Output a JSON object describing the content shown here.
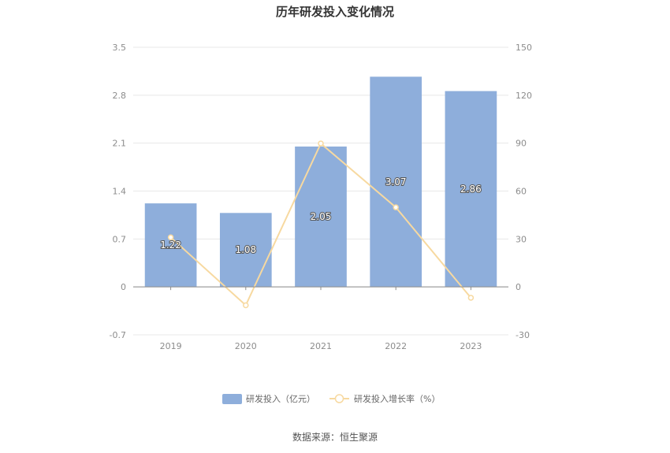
{
  "title": "历年研发投入变化情况",
  "source": "数据来源：恒生聚源",
  "chart_data": {
    "type": "bar",
    "categories": [
      "2019",
      "2020",
      "2021",
      "2022",
      "2023"
    ],
    "series": [
      {
        "name": "研发投入（亿元）",
        "type": "bar",
        "axis": "left",
        "values": [
          1.22,
          1.08,
          2.05,
          3.07,
          2.86
        ],
        "labels": [
          "1.22",
          "1.08",
          "2.05",
          "3.07",
          "2.86"
        ],
        "color": "#8eaedb"
      },
      {
        "name": "研发投入增长率（%）",
        "type": "line",
        "axis": "right",
        "values": [
          31,
          -11.5,
          89.8,
          49.8,
          -6.8
        ],
        "color": "#f7d9a0"
      }
    ],
    "y_left": {
      "min": -0.7,
      "max": 3.5,
      "ticks": [
        "-0.7",
        "0",
        "0.7",
        "1.4",
        "2.1",
        "2.8",
        "3.5"
      ]
    },
    "y_right": {
      "min": -30,
      "max": 150,
      "ticks": [
        "-30",
        "0",
        "30",
        "60",
        "90",
        "120",
        "150"
      ]
    },
    "grid": true,
    "legend_position": "bottom"
  }
}
